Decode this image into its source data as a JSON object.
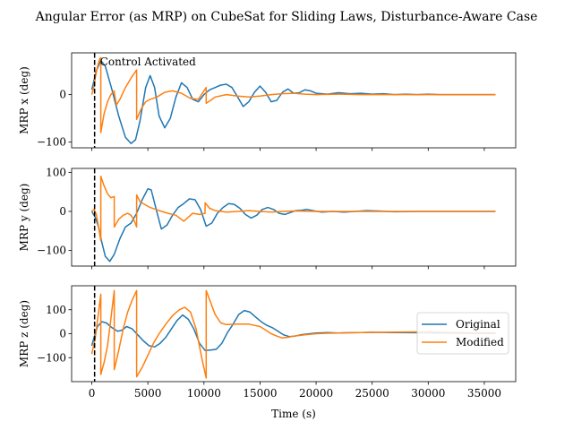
{
  "chart_data": {
    "type": "line",
    "title": "Angular Error (as MRP) on CubeSat for Sliding Laws, Disturbance-Aware Case",
    "xlabel": "Time (s)",
    "xlim": [
      -1800,
      37800
    ],
    "xticks": [
      0,
      5000,
      10000,
      15000,
      20000,
      25000,
      30000,
      35000
    ],
    "xtick_labels": [
      "0",
      "5000",
      "10000",
      "15000",
      "20000",
      "25000",
      "30000",
      "35000"
    ],
    "annotation": {
      "text": "Control Activated",
      "x": 250
    },
    "legend": {
      "placement": "right",
      "entries": [
        "Original",
        "Modified"
      ]
    },
    "colors": {
      "original": "#1f77b4",
      "modified": "#ff7f0e",
      "activation_line": "#000000"
    },
    "panels": [
      {
        "ylabel": "MRP x (deg)",
        "ylim": [
          -112,
          88
        ],
        "yticks": [
          -100,
          0
        ],
        "ytick_labels": [
          "−100",
          "0"
        ],
        "series": [
          {
            "name": "Original",
            "x": [
              0,
              400,
              800,
              1200,
              1800,
              2400,
              3000,
              3500,
              3900,
              4300,
              4800,
              5200,
              5600,
              6000,
              6500,
              7000,
              7500,
              8000,
              8500,
              9000,
              9500,
              10000,
              10500,
              11000,
              11500,
              12000,
              12500,
              13000,
              13500,
              14000,
              14500,
              15000,
              15500,
              16000,
              16500,
              17000,
              17500,
              18000,
              18500,
              19000,
              19500,
              20000,
              21000,
              22000,
              23000,
              24000,
              25000,
              26000,
              27000,
              28000,
              29000,
              30000,
              31000,
              32000,
              33000,
              34000,
              35000,
              36000
            ],
            "y": [
              10,
              50,
              72,
              60,
              10,
              -45,
              -90,
              -103,
              -95,
              -55,
              15,
              40,
              15,
              -45,
              -70,
              -50,
              -5,
              25,
              15,
              -10,
              -15,
              0,
              10,
              15,
              20,
              22,
              15,
              -5,
              -25,
              -15,
              5,
              18,
              5,
              -15,
              -12,
              5,
              12,
              3,
              4,
              10,
              8,
              3,
              1,
              4,
              2,
              3,
              1,
              2,
              0,
              1,
              0,
              1,
              0,
              0,
              0,
              0,
              0,
              0
            ]
          },
          {
            "name": "Modified",
            "x": [
              0,
              150,
              300,
              500,
              700,
              799,
              800,
              1100,
              1400,
              1700,
              1999,
              2000,
              2200,
              2500,
              3000,
              3500,
              3999,
              4000,
              4400,
              4800,
              5200,
              5800,
              6500,
              7200,
              8000,
              8800,
              9500,
              10199,
              10200,
              10600,
              11000,
              12000,
              13000,
              14000,
              15000,
              16000,
              17000,
              18000,
              19000,
              20000,
              22000,
              24000,
              27000,
              30000,
              33000,
              36000
            ],
            "y": [
              0,
              12,
              35,
              58,
              75,
              78,
              -80,
              -40,
              -15,
              0,
              8,
              5,
              -22,
              -10,
              15,
              35,
              52,
              -52,
              -30,
              -15,
              -10,
              -5,
              5,
              8,
              3,
              -8,
              -10,
              15,
              -18,
              -12,
              -5,
              0,
              -3,
              -5,
              -3,
              0,
              2,
              3,
              1,
              0,
              1,
              0,
              0,
              0,
              0,
              0
            ]
          }
        ]
      },
      {
        "ylabel": "MRP y (deg)",
        "ylim": [
          -140,
          110
        ],
        "yticks": [
          -100,
          0,
          100
        ],
        "ytick_labels": [
          "−100",
          "0",
          "100"
        ],
        "series": [
          {
            "name": "Original",
            "x": [
              0,
              300,
              600,
              900,
              1200,
              1600,
              2000,
              2500,
              3000,
              3500,
              4000,
              4500,
              5000,
              5300,
              5700,
              6200,
              6700,
              7200,
              7700,
              8200,
              8700,
              9200,
              9700,
              10200,
              10700,
              11200,
              11700,
              12200,
              12700,
              13200,
              13700,
              14200,
              14700,
              15200,
              15700,
              16200,
              16700,
              17200,
              17700,
              18200,
              18700,
              19200,
              19700,
              20500,
              21500,
              22500,
              23500,
              24500,
              25500,
              27000,
              29000,
              31000,
              33000,
              36000
            ],
            "y": [
              0,
              -15,
              -40,
              -80,
              -115,
              -128,
              -110,
              -70,
              -40,
              -30,
              -5,
              30,
              58,
              55,
              10,
              -45,
              -35,
              -10,
              10,
              20,
              32,
              30,
              5,
              -38,
              -30,
              -5,
              10,
              20,
              18,
              8,
              -8,
              -17,
              -10,
              5,
              10,
              5,
              -5,
              -8,
              -3,
              2,
              3,
              5,
              2,
              -2,
              0,
              -2,
              0,
              2,
              1,
              -1,
              0,
              0,
              0,
              0
            ]
          },
          {
            "name": "Modified",
            "x": [
              0,
              200,
              400,
              600,
              799,
              800,
              1100,
              1400,
              1700,
              1999,
              2000,
              2400,
              2800,
              3200,
              3500,
              3800,
              3999,
              4000,
              4300,
              4700,
              5200,
              6000,
              6800,
              7500,
              8200,
              9000,
              9600,
              10099,
              10100,
              10500,
              11000,
              12000,
              13000,
              14000,
              15000,
              16000,
              17000,
              18000,
              20000,
              22000,
              25000,
              30000,
              36000
            ],
            "y": [
              0,
              5,
              -8,
              -40,
              -75,
              90,
              65,
              45,
              35,
              38,
              -40,
              -20,
              -10,
              -5,
              -10,
              -25,
              -40,
              42,
              25,
              18,
              10,
              2,
              -5,
              -10,
              -25,
              -5,
              -8,
              -5,
              22,
              8,
              2,
              -2,
              0,
              2,
              0,
              -2,
              0,
              1,
              0,
              0,
              0,
              0,
              0
            ]
          }
        ]
      },
      {
        "ylabel": "MRP z (deg)",
        "ylim": [
          -200,
          200
        ],
        "yticks": [
          -100,
          0,
          100
        ],
        "ytick_labels": [
          "−100",
          "0",
          "100"
        ],
        "series": [
          {
            "name": "Original",
            "x": [
              0,
              200,
              500,
              900,
              1300,
              1800,
              2300,
              2700,
              3100,
              3600,
              4100,
              4600,
              5100,
              5600,
              6100,
              6600,
              7100,
              7600,
              8100,
              8600,
              9100,
              9600,
              10100,
              10600,
              11100,
              11600,
              12100,
              12600,
              13100,
              13600,
              14100,
              14600,
              15100,
              15600,
              16100,
              16600,
              17100,
              17600,
              18100,
              18600,
              19100,
              20000,
              21000,
              22000,
              23000,
              24000,
              25000,
              27000,
              29000,
              31000,
              33000,
              35000,
              36000
            ],
            "y": [
              -50,
              -15,
              30,
              50,
              45,
              25,
              10,
              15,
              30,
              20,
              -5,
              -30,
              -50,
              -55,
              -40,
              -15,
              20,
              55,
              78,
              60,
              20,
              -40,
              -70,
              -68,
              -65,
              -40,
              5,
              40,
              80,
              97,
              90,
              70,
              50,
              35,
              25,
              10,
              -5,
              -12,
              -10,
              -5,
              -2,
              3,
              5,
              3,
              4,
              5,
              6,
              5,
              4,
              3,
              2,
              1,
              1
            ]
          },
          {
            "name": "Modified",
            "x": [
              0,
              300,
              600,
              799,
              800,
              1100,
              1400,
              1700,
              1999,
              2000,
              2400,
              2800,
              3200,
              3600,
              3999,
              4000,
              4500,
              5000,
              5500,
              6000,
              6600,
              7200,
              7800,
              8300,
              8800,
              9300,
              9800,
              10199,
              10200,
              10600,
              11000,
              11500,
              12000,
              13000,
              14000,
              15000,
              15500,
              16000,
              16500,
              17000,
              17500,
              18000,
              19000,
              20000,
              21000,
              22000,
              24000,
              26000,
              28000,
              30000,
              32000,
              34000,
              36000
            ],
            "y": [
              -85,
              -20,
              90,
              165,
              -170,
              -120,
              -50,
              60,
              180,
              -150,
              -70,
              20,
              90,
              140,
              180,
              -180,
              -140,
              -90,
              -40,
              0,
              40,
              75,
              100,
              110,
              90,
              20,
              -100,
              -185,
              180,
              130,
              80,
              45,
              38,
              40,
              40,
              30,
              15,
              0,
              -10,
              -18,
              -15,
              -10,
              -5,
              0,
              2,
              3,
              5,
              6,
              7,
              8,
              6,
              5,
              5
            ]
          }
        ]
      }
    ]
  }
}
